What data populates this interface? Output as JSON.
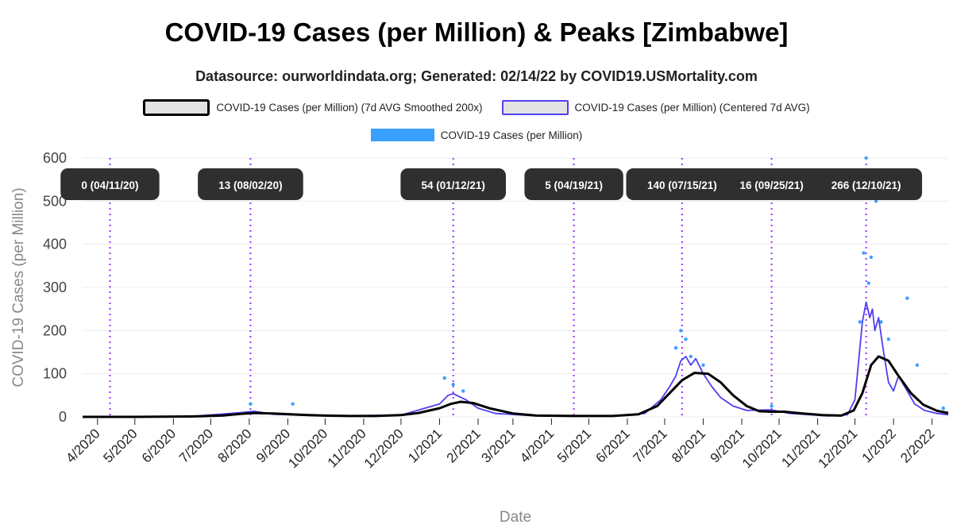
{
  "title": "COVID-19 Cases (per Million) & Peaks [Zimbabwe]",
  "subtitle": "Datasource: ourworldindata.org; Generated: 02/14/22 by COVID19.USMortality.com",
  "legend": {
    "smoothed": "COVID-19 Cases (per Million) (7d AVG Smoothed 200x)",
    "centered": "COVID-19 Cases (per Million) (Centered 7d AVG)",
    "daily": "COVID-19 Cases (per Million)"
  },
  "colors": {
    "smoothed": "#000000",
    "centered": "#4f3ff0",
    "daily": "#3aa0ff",
    "peak_line": "#9b30ff",
    "peak_box": "#2f2f2f"
  },
  "chart_data": {
    "type": "line",
    "xlabel": "Date",
    "ylabel": "COVID-19 Cases (per Million)",
    "ylim": [
      0,
      600
    ],
    "yticks": [
      0,
      100,
      200,
      300,
      400,
      500,
      600
    ],
    "xlim": [
      "2020-03-20",
      "2022-02-14"
    ],
    "xticks": [
      {
        "date": "2020-04-01",
        "label": "4/2020"
      },
      {
        "date": "2020-05-01",
        "label": "5/2020"
      },
      {
        "date": "2020-06-01",
        "label": "6/2020"
      },
      {
        "date": "2020-07-01",
        "label": "7/2020"
      },
      {
        "date": "2020-08-01",
        "label": "8/2020"
      },
      {
        "date": "2020-09-01",
        "label": "9/2020"
      },
      {
        "date": "2020-10-01",
        "label": "10/2020"
      },
      {
        "date": "2020-11-01",
        "label": "11/2020"
      },
      {
        "date": "2020-12-01",
        "label": "12/2020"
      },
      {
        "date": "2021-01-01",
        "label": "1/2021"
      },
      {
        "date": "2021-02-01",
        "label": "2/2021"
      },
      {
        "date": "2021-03-01",
        "label": "3/2021"
      },
      {
        "date": "2021-04-01",
        "label": "4/2021"
      },
      {
        "date": "2021-05-01",
        "label": "5/2021"
      },
      {
        "date": "2021-06-01",
        "label": "6/2021"
      },
      {
        "date": "2021-07-01",
        "label": "7/2021"
      },
      {
        "date": "2021-08-01",
        "label": "8/2021"
      },
      {
        "date": "2021-09-01",
        "label": "9/2021"
      },
      {
        "date": "2021-10-01",
        "label": "10/2021"
      },
      {
        "date": "2021-11-01",
        "label": "11/2021"
      },
      {
        "date": "2021-12-01",
        "label": "12/2021"
      },
      {
        "date": "2022-01-01",
        "label": "1/2022"
      },
      {
        "date": "2022-02-01",
        "label": "2/2022"
      }
    ],
    "peaks": [
      {
        "date": "2020-04-11",
        "label": "0 (04/11/20)"
      },
      {
        "date": "2020-08-02",
        "label": "13 (08/02/20)"
      },
      {
        "date": "2021-01-12",
        "label": "54 (01/12/21)"
      },
      {
        "date": "2021-04-19",
        "label": "5 (04/19/21)"
      },
      {
        "date": "2021-07-15",
        "label": "140 (07/15/21)"
      },
      {
        "date": "2021-09-25",
        "label": "16 (09/25/21)"
      },
      {
        "date": "2021-12-10",
        "label": "266 (12/10/21)"
      }
    ],
    "series": [
      {
        "name": "COVID-19 Cases (per Million) (7d AVG Smoothed 200x)",
        "style": "line",
        "x": [
          "2020-03-20",
          "2020-05-01",
          "2020-06-15",
          "2020-07-10",
          "2020-07-25",
          "2020-08-05",
          "2020-08-20",
          "2020-09-10",
          "2020-10-01",
          "2020-10-20",
          "2020-11-10",
          "2020-12-01",
          "2020-12-15",
          "2021-01-01",
          "2021-01-10",
          "2021-01-18",
          "2021-01-28",
          "2021-02-10",
          "2021-03-01",
          "2021-03-20",
          "2021-04-19",
          "2021-05-20",
          "2021-06-10",
          "2021-06-25",
          "2021-07-05",
          "2021-07-15",
          "2021-07-25",
          "2021-08-05",
          "2021-08-15",
          "2021-08-25",
          "2021-09-05",
          "2021-09-15",
          "2021-09-25",
          "2021-10-05",
          "2021-10-20",
          "2021-11-05",
          "2021-11-20",
          "2021-11-30",
          "2021-12-07",
          "2021-12-14",
          "2021-12-20",
          "2021-12-28",
          "2022-01-05",
          "2022-01-15",
          "2022-01-25",
          "2022-02-05",
          "2022-02-14"
        ],
        "y": [
          0,
          0,
          1,
          3,
          7,
          9,
          8,
          5,
          3,
          2,
          2,
          4,
          9,
          20,
          30,
          35,
          32,
          20,
          8,
          3,
          2,
          2,
          6,
          25,
          55,
          85,
          102,
          100,
          80,
          50,
          25,
          13,
          12,
          12,
          8,
          4,
          3,
          15,
          55,
          120,
          140,
          130,
          95,
          55,
          28,
          14,
          9
        ]
      },
      {
        "name": "COVID-19 Cases (per Million) (Centered 7d AVG)",
        "style": "line",
        "x": [
          "2020-03-20",
          "2020-06-15",
          "2020-07-25",
          "2020-08-05",
          "2020-08-20",
          "2020-10-01",
          "2020-12-01",
          "2021-01-01",
          "2021-01-08",
          "2021-01-12",
          "2021-01-16",
          "2021-01-22",
          "2021-02-01",
          "2021-02-15",
          "2021-03-15",
          "2021-05-20",
          "2021-06-15",
          "2021-06-28",
          "2021-07-05",
          "2021-07-10",
          "2021-07-14",
          "2021-07-18",
          "2021-07-22",
          "2021-07-26",
          "2021-08-01",
          "2021-08-08",
          "2021-08-15",
          "2021-08-25",
          "2021-09-05",
          "2021-09-20",
          "2021-09-25",
          "2021-10-10",
          "2021-11-10",
          "2021-11-25",
          "2021-12-01",
          "2021-12-04",
          "2021-12-07",
          "2021-12-10",
          "2021-12-13",
          "2021-12-15",
          "2021-12-17",
          "2021-12-20",
          "2021-12-24",
          "2021-12-28",
          "2022-01-01",
          "2022-01-05",
          "2022-01-10",
          "2022-01-18",
          "2022-01-26",
          "2022-02-05",
          "2022-02-14"
        ],
        "y": [
          0,
          1,
          10,
          13,
          6,
          2,
          4,
          30,
          50,
          54,
          48,
          40,
          20,
          8,
          3,
          2,
          8,
          40,
          70,
          95,
          130,
          140,
          120,
          135,
          100,
          70,
          45,
          25,
          15,
          16,
          16,
          8,
          2,
          5,
          40,
          130,
          220,
          266,
          230,
          250,
          200,
          230,
          150,
          80,
          60,
          95,
          70,
          30,
          15,
          8,
          5
        ]
      },
      {
        "name": "COVID-19 Cases (per Million)",
        "style": "points",
        "x": [
          "2020-08-02",
          "2020-09-05",
          "2021-01-05",
          "2021-01-12",
          "2021-01-20",
          "2021-07-10",
          "2021-07-14",
          "2021-07-18",
          "2021-07-22",
          "2021-08-01",
          "2021-09-25",
          "2021-12-05",
          "2021-12-08",
          "2021-12-10",
          "2021-12-12",
          "2021-12-14",
          "2021-12-18",
          "2021-12-22",
          "2021-12-28",
          "2022-01-12",
          "2022-01-20",
          "2022-02-10"
        ],
        "y": [
          30,
          30,
          90,
          75,
          60,
          160,
          200,
          180,
          140,
          120,
          25,
          220,
          380,
          600,
          310,
          370,
          500,
          220,
          180,
          275,
          120,
          20
        ]
      }
    ]
  }
}
